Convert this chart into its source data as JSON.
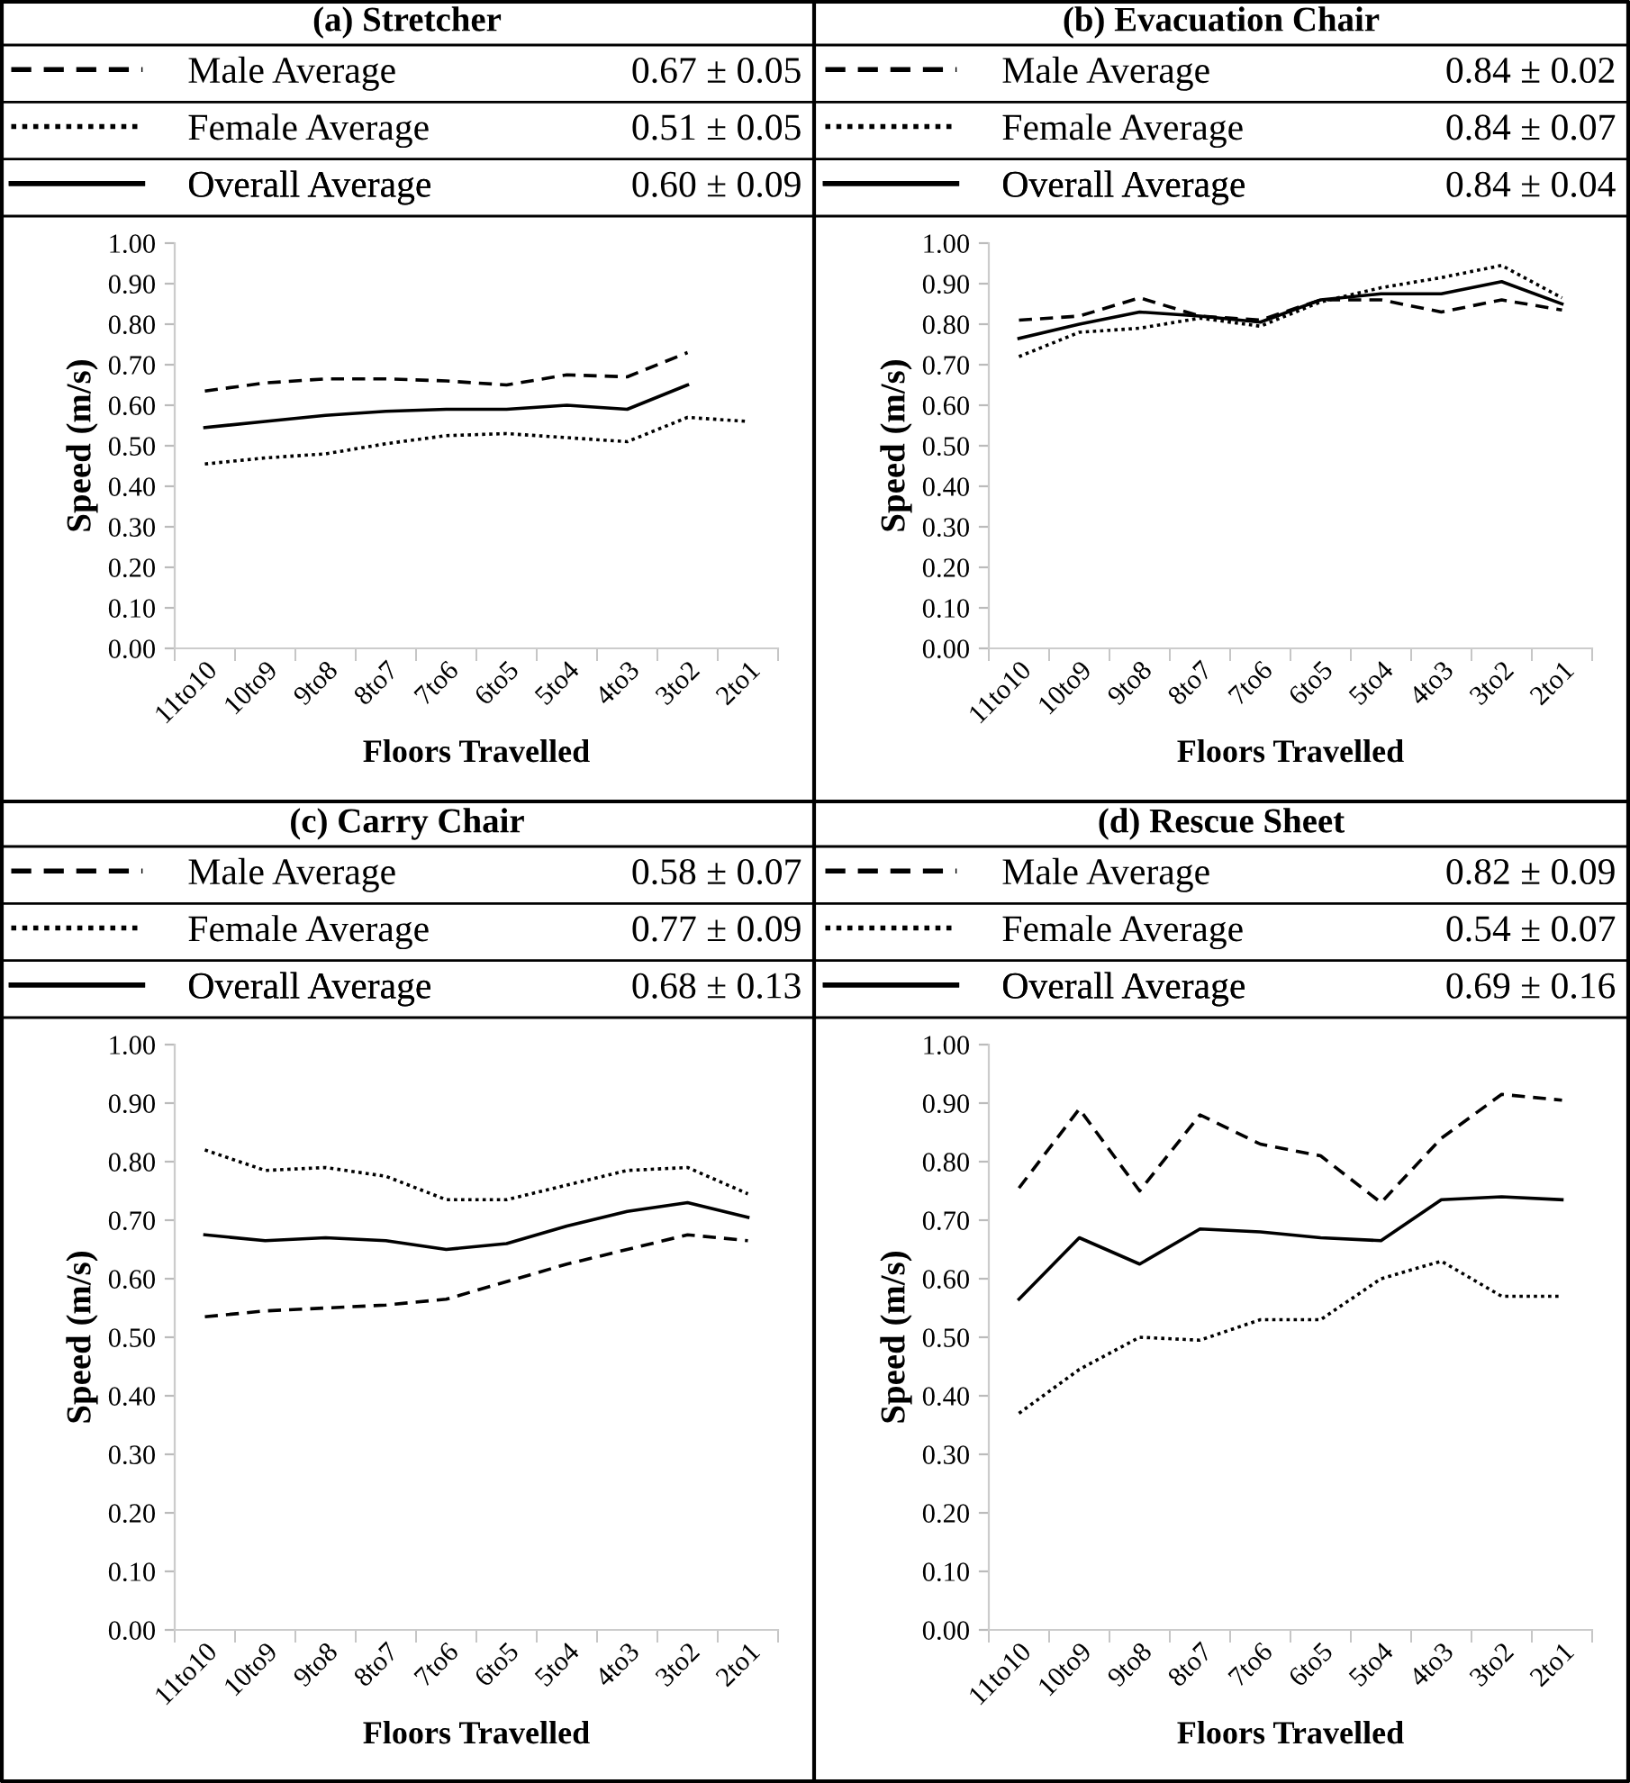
{
  "chart_data": [
    {
      "type": "line",
      "title": "(a) Stretcher",
      "xlabel": "Floors Travelled",
      "ylabel": "Speed (m/s)",
      "legend": "top",
      "categories": [
        "11to10",
        "10to9",
        "9to8",
        "8to7",
        "7to6",
        "6to5",
        "5to4",
        "4to3",
        "3to2",
        "2to1"
      ],
      "ylim": [
        0,
        1
      ],
      "yticks": [
        {
          "value": 0,
          "label": "0.00"
        },
        {
          "value": 0.1,
          "label": "0.10"
        },
        {
          "value": 0.2,
          "label": "0.20"
        },
        {
          "value": 0.3,
          "label": "0.30"
        },
        {
          "value": 0.4,
          "label": "0.40"
        },
        {
          "value": 0.5,
          "label": "0.50"
        },
        {
          "value": 0.6,
          "label": "0.60"
        },
        {
          "value": 0.7,
          "label": "0.70"
        },
        {
          "value": 0.8,
          "label": "0.80"
        },
        {
          "value": 0.9,
          "label": "0.90"
        },
        {
          "value": 1,
          "label": "1.00"
        }
      ],
      "grid": false,
      "annotations": [
        "0.67 ± 0.05",
        "0.51 ± 0.05",
        "0.60 ± 0.09"
      ],
      "series": [
        {
          "name": "Male Average",
          "color": "#000000",
          "line_style": "dashed",
          "values": [
            0.635,
            0.655,
            0.665,
            0.665,
            0.66,
            0.65,
            0.675,
            0.67,
            0.73,
            null
          ]
        },
        {
          "name": "Female Average",
          "color": "#000000",
          "line_style": "dotted",
          "values": [
            0.455,
            0.47,
            0.48,
            0.505,
            0.525,
            0.53,
            0.52,
            0.51,
            0.57,
            0.56
          ]
        },
        {
          "name": "Overall Average",
          "color": "#000000",
          "line_style": "solid",
          "values": [
            0.545,
            0.56,
            0.575,
            0.585,
            0.59,
            0.59,
            0.6,
            0.59,
            0.65,
            null
          ]
        }
      ]
    },
    {
      "type": "line",
      "title": "(b) Evacuation Chair",
      "xlabel": "Floors Travelled",
      "ylabel": "Speed (m/s)",
      "legend": "top",
      "categories": [
        "11to10",
        "10to9",
        "9to8",
        "8to7",
        "7to6",
        "6to5",
        "5to4",
        "4to3",
        "3to2",
        "2to1"
      ],
      "ylim": [
        0,
        1
      ],
      "yticks": [
        {
          "value": 0,
          "label": "0.00"
        },
        {
          "value": 0.1,
          "label": "0.10"
        },
        {
          "value": 0.2,
          "label": "0.20"
        },
        {
          "value": 0.3,
          "label": "0.30"
        },
        {
          "value": 0.4,
          "label": "0.40"
        },
        {
          "value": 0.5,
          "label": "0.50"
        },
        {
          "value": 0.6,
          "label": "0.60"
        },
        {
          "value": 0.7,
          "label": "0.70"
        },
        {
          "value": 0.8,
          "label": "0.80"
        },
        {
          "value": 0.9,
          "label": "0.90"
        },
        {
          "value": 1,
          "label": "1.00"
        }
      ],
      "grid": false,
      "annotations": [
        "0.84 ± 0.02",
        "0.84 ± 0.07",
        "0.84 ± 0.04"
      ],
      "series": [
        {
          "name": "Male Average",
          "color": "#000000",
          "line_style": "dashed",
          "values": [
            0.81,
            0.82,
            0.865,
            0.82,
            0.81,
            0.86,
            0.86,
            0.83,
            0.86,
            0.835
          ]
        },
        {
          "name": "Female Average",
          "color": "#000000",
          "line_style": "dotted",
          "values": [
            0.72,
            0.78,
            0.79,
            0.815,
            0.795,
            0.855,
            0.89,
            0.915,
            0.945,
            0.865
          ]
        },
        {
          "name": "Overall Average",
          "color": "#000000",
          "line_style": "solid",
          "values": [
            0.765,
            0.8,
            0.83,
            0.82,
            0.805,
            0.86,
            0.875,
            0.875,
            0.905,
            0.85
          ]
        }
      ]
    },
    {
      "type": "line",
      "title": "(c) Carry Chair",
      "xlabel": "Floors Travelled",
      "ylabel": "Speed (m/s)",
      "legend": "top",
      "categories": [
        "11to10",
        "10to9",
        "9to8",
        "8to7",
        "7to6",
        "6to5",
        "5to4",
        "4to3",
        "3to2",
        "2to1"
      ],
      "ylim": [
        0,
        1
      ],
      "yticks": [
        {
          "value": 0,
          "label": "0.00"
        },
        {
          "value": 0.1,
          "label": "0.10"
        },
        {
          "value": 0.2,
          "label": "0.20"
        },
        {
          "value": 0.3,
          "label": "0.30"
        },
        {
          "value": 0.4,
          "label": "0.40"
        },
        {
          "value": 0.5,
          "label": "0.50"
        },
        {
          "value": 0.6,
          "label": "0.60"
        },
        {
          "value": 0.7,
          "label": "0.70"
        },
        {
          "value": 0.8,
          "label": "0.80"
        },
        {
          "value": 0.9,
          "label": "0.90"
        },
        {
          "value": 1,
          "label": "1.00"
        }
      ],
      "grid": false,
      "annotations": [
        "0.58 ± 0.07",
        "0.77 ± 0.09",
        "0.68 ± 0.13"
      ],
      "series": [
        {
          "name": "Male Average",
          "color": "#000000",
          "line_style": "dashed",
          "values": [
            0.535,
            0.545,
            0.55,
            0.555,
            0.565,
            0.595,
            0.625,
            0.65,
            0.675,
            0.665
          ]
        },
        {
          "name": "Female Average",
          "color": "#000000",
          "line_style": "dotted",
          "values": [
            0.82,
            0.785,
            0.79,
            0.775,
            0.735,
            0.735,
            0.76,
            0.785,
            0.79,
            0.745
          ]
        },
        {
          "name": "Overall Average",
          "color": "#000000",
          "line_style": "solid",
          "values": [
            0.675,
            0.665,
            0.67,
            0.665,
            0.65,
            0.66,
            0.69,
            0.715,
            0.73,
            0.705
          ]
        }
      ]
    },
    {
      "type": "line",
      "title": "(d) Rescue Sheet",
      "xlabel": "Floors Travelled",
      "ylabel": "Speed (m/s)",
      "legend": "top",
      "categories": [
        "11to10",
        "10to9",
        "9to8",
        "8to7",
        "7to6",
        "6to5",
        "5to4",
        "4to3",
        "3to2",
        "2to1"
      ],
      "ylim": [
        0,
        1
      ],
      "yticks": [
        {
          "value": 0,
          "label": "0.00"
        },
        {
          "value": 0.1,
          "label": "0.10"
        },
        {
          "value": 0.2,
          "label": "0.20"
        },
        {
          "value": 0.3,
          "label": "0.30"
        },
        {
          "value": 0.4,
          "label": "0.40"
        },
        {
          "value": 0.5,
          "label": "0.50"
        },
        {
          "value": 0.6,
          "label": "0.60"
        },
        {
          "value": 0.7,
          "label": "0.70"
        },
        {
          "value": 0.8,
          "label": "0.80"
        },
        {
          "value": 0.9,
          "label": "0.90"
        },
        {
          "value": 1,
          "label": "1.00"
        }
      ],
      "grid": false,
      "annotations": [
        "0.82 ± 0.09",
        "0.54 ± 0.07",
        "0.69 ± 0.16"
      ],
      "series": [
        {
          "name": "Male Average",
          "color": "#000000",
          "line_style": "dashed",
          "values": [
            0.755,
            0.89,
            0.75,
            0.88,
            0.83,
            0.81,
            0.73,
            0.84,
            0.915,
            0.905
          ]
        },
        {
          "name": "Female Average",
          "color": "#000000",
          "line_style": "dotted",
          "values": [
            0.37,
            0.445,
            0.5,
            0.495,
            0.53,
            0.53,
            0.6,
            0.63,
            0.57,
            0.57
          ]
        },
        {
          "name": "Overall Average",
          "color": "#000000",
          "line_style": "solid",
          "values": [
            0.565,
            0.67,
            0.625,
            0.685,
            0.68,
            0.67,
            0.665,
            0.735,
            0.74,
            0.735
          ]
        }
      ]
    }
  ]
}
